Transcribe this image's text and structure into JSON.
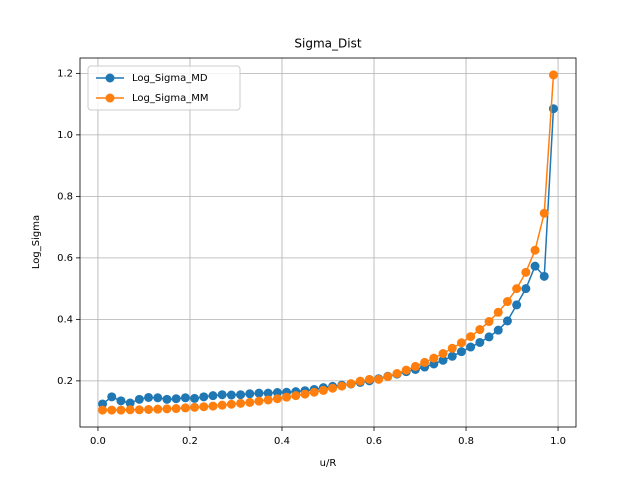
{
  "chart_data": {
    "type": "line",
    "title": "Sigma_Dist",
    "xlabel": "u/R",
    "ylabel": "Log_Sigma",
    "x": [
      0.01,
      0.03,
      0.05,
      0.07,
      0.09,
      0.11,
      0.13,
      0.15,
      0.17,
      0.19,
      0.21,
      0.23,
      0.25,
      0.27,
      0.29,
      0.31,
      0.33,
      0.35,
      0.37,
      0.39,
      0.41,
      0.43,
      0.45,
      0.47,
      0.49,
      0.51,
      0.53,
      0.55,
      0.57,
      0.59,
      0.61,
      0.63,
      0.65,
      0.67,
      0.69,
      0.71,
      0.73,
      0.75,
      0.77,
      0.79,
      0.81,
      0.83,
      0.85,
      0.87,
      0.89,
      0.91,
      0.93,
      0.95,
      0.97,
      0.99
    ],
    "series": [
      {
        "name": "Log_Sigma_MD",
        "color": "#1f77b4",
        "values": [
          0.125,
          0.148,
          0.135,
          0.128,
          0.14,
          0.146,
          0.145,
          0.14,
          0.142,
          0.145,
          0.143,
          0.148,
          0.152,
          0.155,
          0.154,
          0.155,
          0.158,
          0.16,
          0.16,
          0.162,
          0.163,
          0.165,
          0.168,
          0.172,
          0.178,
          0.182,
          0.186,
          0.19,
          0.195,
          0.2,
          0.207,
          0.215,
          0.222,
          0.23,
          0.237,
          0.245,
          0.255,
          0.267,
          0.28,
          0.295,
          0.31,
          0.325,
          0.343,
          0.365,
          0.395,
          0.447,
          0.5,
          0.573,
          0.54,
          1.085
        ]
      },
      {
        "name": "Log_Sigma_MM",
        "color": "#ff7f0e",
        "values": [
          0.105,
          0.105,
          0.105,
          0.106,
          0.106,
          0.107,
          0.108,
          0.109,
          0.11,
          0.112,
          0.114,
          0.116,
          0.118,
          0.121,
          0.124,
          0.127,
          0.13,
          0.134,
          0.138,
          0.142,
          0.147,
          0.152,
          0.157,
          0.163,
          0.169,
          0.176,
          0.183,
          0.191,
          0.199,
          0.205,
          0.205,
          0.214,
          0.224,
          0.235,
          0.247,
          0.26,
          0.274,
          0.289,
          0.306,
          0.324,
          0.344,
          0.367,
          0.393,
          0.423,
          0.458,
          0.5,
          0.553,
          0.625,
          0.745,
          1.195
        ]
      }
    ],
    "xlim": [
      -0.039,
      1.039
    ],
    "ylim": [
      0.05,
      1.25
    ],
    "xticks": [
      {
        "value": 0,
        "label": "0.0"
      },
      0.2,
      0.4,
      0.6,
      0.8,
      {
        "value": 1,
        "label": "1.0"
      }
    ],
    "yticks": [
      0.2,
      0.4,
      0.6,
      0.8,
      {
        "value": 1,
        "label": "1.0"
      },
      1.2
    ],
    "grid": true,
    "legend": "upper left"
  }
}
